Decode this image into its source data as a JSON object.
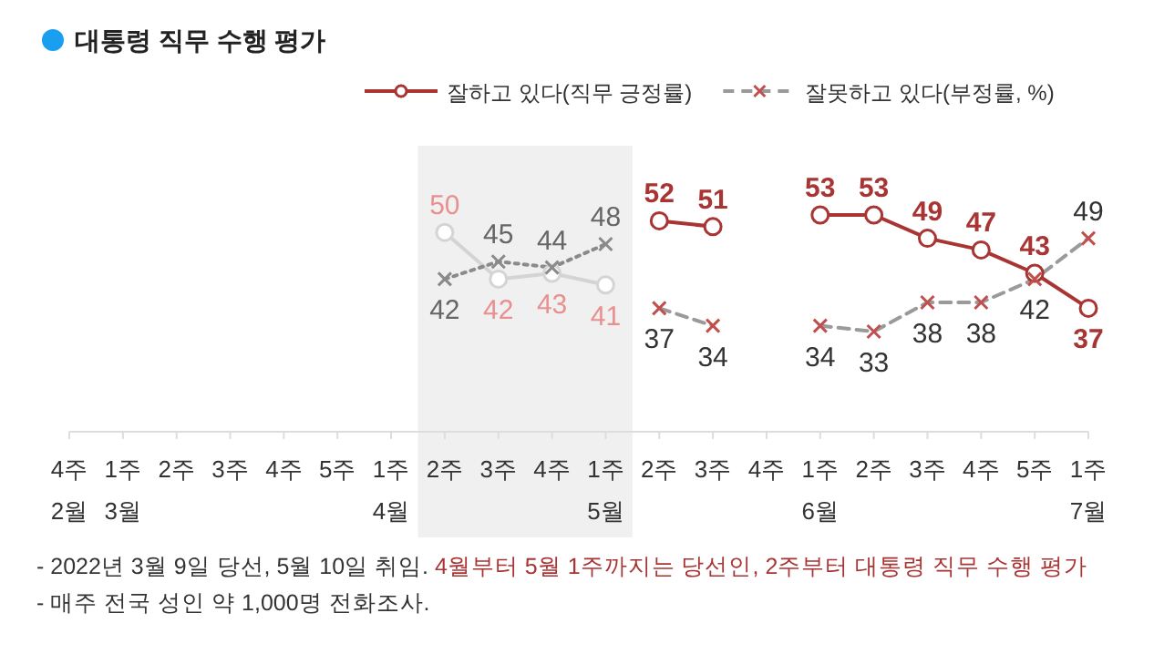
{
  "chart_data": {
    "type": "line",
    "title": "대통령 직무 수행 평가",
    "categories": [
      "4주\n2월",
      "1주\n3월",
      "2주",
      "3주",
      "4주",
      "5주",
      "1주\n4월",
      "2주",
      "3주",
      "4주",
      "1주\n5월",
      "2주",
      "3주",
      "4주",
      "1주\n6월",
      "2주",
      "3주",
      "4주",
      "5주",
      "1주\n7월"
    ],
    "series": [
      {
        "color": "#d4d4d4",
        "marker": "circle",
        "line_style": "solid",
        "values": [
          null,
          null,
          null,
          null,
          null,
          null,
          null,
          50,
          42,
          43,
          41,
          null,
          null,
          null,
          null,
          null,
          null,
          null,
          null,
          null
        ]
      },
      {
        "color": "#8a8a8a",
        "marker": "cross",
        "line_style": "dotted",
        "values": [
          null,
          null,
          null,
          null,
          null,
          null,
          null,
          42,
          45,
          44,
          48,
          null,
          null,
          null,
          null,
          null,
          null,
          null,
          null,
          null
        ]
      },
      {
        "name": "잘하고 있다(직무 긍정률)",
        "color": "#a93434",
        "marker": "circle",
        "line_style": "solid",
        "values": [
          null,
          null,
          null,
          null,
          null,
          null,
          null,
          null,
          null,
          null,
          null,
          52,
          51,
          null,
          53,
          53,
          49,
          47,
          43,
          37
        ]
      },
      {
        "name": "잘못하고 있다(부정률, %)",
        "color": "#9a9a9a",
        "marker": "cross",
        "line_style": "dashed",
        "values": [
          null,
          null,
          null,
          null,
          null,
          null,
          null,
          null,
          null,
          null,
          null,
          37,
          34,
          null,
          34,
          33,
          38,
          38,
          42,
          49
        ]
      }
    ],
    "data_labels": true,
    "legend": "top right",
    "annotations": [
      "- 2022년 3월 9일 당선, 5월 10일 취임. ",
      "4월부터 5월 1주까지는 당선인, 2주부터 대통령 직무 수행 평가",
      "- 매주 전국 성인 약 1,000명 전화조사."
    ]
  }
}
